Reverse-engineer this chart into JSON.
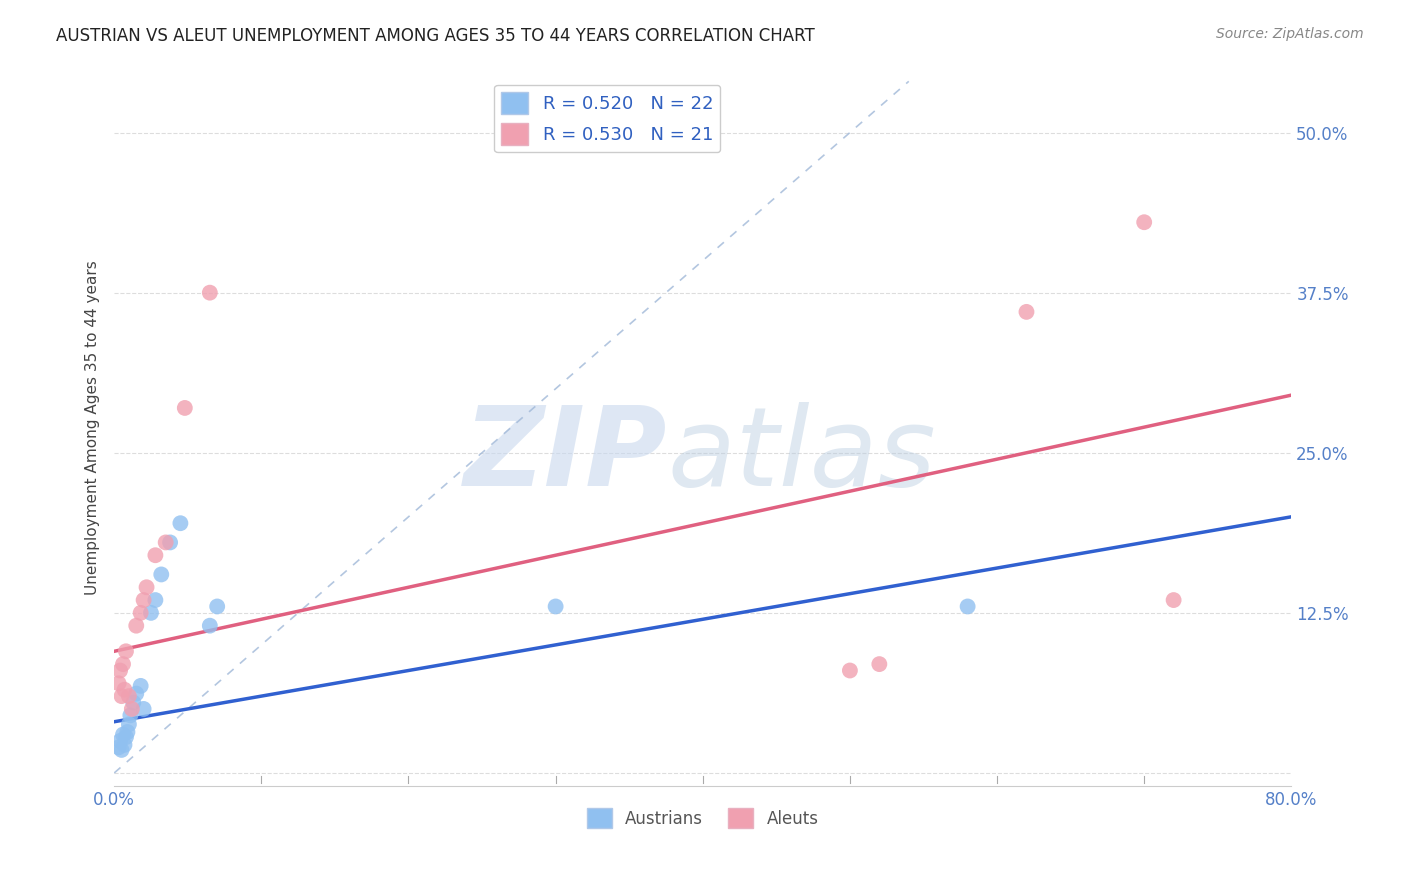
{
  "title": "AUSTRIAN VS ALEUT UNEMPLOYMENT AMONG AGES 35 TO 44 YEARS CORRELATION CHART",
  "source": "Source: ZipAtlas.com",
  "ylabel": "Unemployment Among Ages 35 to 44 years",
  "xlim": [
    0.0,
    0.8
  ],
  "ylim": [
    -0.01,
    0.55
  ],
  "xticks": [
    0.0,
    0.1,
    0.2,
    0.3,
    0.4,
    0.5,
    0.6,
    0.7,
    0.8
  ],
  "xticklabels": [
    "0.0%",
    "",
    "",
    "",
    "",
    "",
    "",
    "",
    "80.0%"
  ],
  "yticks": [
    0.0,
    0.125,
    0.25,
    0.375,
    0.5
  ],
  "yticklabels": [
    "",
    "12.5%",
    "25.0%",
    "37.5%",
    "50.0%"
  ],
  "background_color": "#ffffff",
  "grid_color": "#dddddd",
  "austrians_x": [
    0.003,
    0.004,
    0.005,
    0.006,
    0.007,
    0.008,
    0.009,
    0.01,
    0.011,
    0.013,
    0.015,
    0.018,
    0.02,
    0.025,
    0.028,
    0.032,
    0.038,
    0.045,
    0.065,
    0.07,
    0.3,
    0.58
  ],
  "austrians_y": [
    0.02,
    0.025,
    0.018,
    0.03,
    0.022,
    0.028,
    0.032,
    0.038,
    0.045,
    0.055,
    0.062,
    0.068,
    0.05,
    0.125,
    0.135,
    0.155,
    0.18,
    0.195,
    0.115,
    0.13,
    0.13,
    0.13
  ],
  "aleuts_x": [
    0.003,
    0.004,
    0.005,
    0.006,
    0.007,
    0.008,
    0.01,
    0.012,
    0.015,
    0.018,
    0.02,
    0.022,
    0.028,
    0.035,
    0.048,
    0.065,
    0.5,
    0.52,
    0.62,
    0.7,
    0.72
  ],
  "aleuts_y": [
    0.07,
    0.08,
    0.06,
    0.085,
    0.065,
    0.095,
    0.06,
    0.05,
    0.115,
    0.125,
    0.135,
    0.145,
    0.17,
    0.18,
    0.285,
    0.375,
    0.08,
    0.085,
    0.36,
    0.43,
    0.135
  ],
  "austrians_color": "#90c0f0",
  "aleuts_color": "#f0a0b0",
  "trendline_austrians_color": "#3060d0",
  "trendline_aleuts_color": "#e06080",
  "diagonal_color": "#a0b8d8",
  "aus_trend_x0": 0.0,
  "aus_trend_y0": 0.04,
  "aus_trend_x1": 0.8,
  "aus_trend_y1": 0.2,
  "ale_trend_x0": 0.0,
  "ale_trend_y0": 0.095,
  "ale_trend_x1": 0.8,
  "ale_trend_y1": 0.295,
  "R_austrians": 0.52,
  "N_austrians": 22,
  "R_aleuts": 0.53,
  "N_aleuts": 21,
  "legend_label_austrians": "R = 0.520   N = 22",
  "legend_label_aleuts": "R = 0.530   N = 21",
  "legend_bottom_austrians": "Austrians",
  "legend_bottom_aleuts": "Aleuts"
}
